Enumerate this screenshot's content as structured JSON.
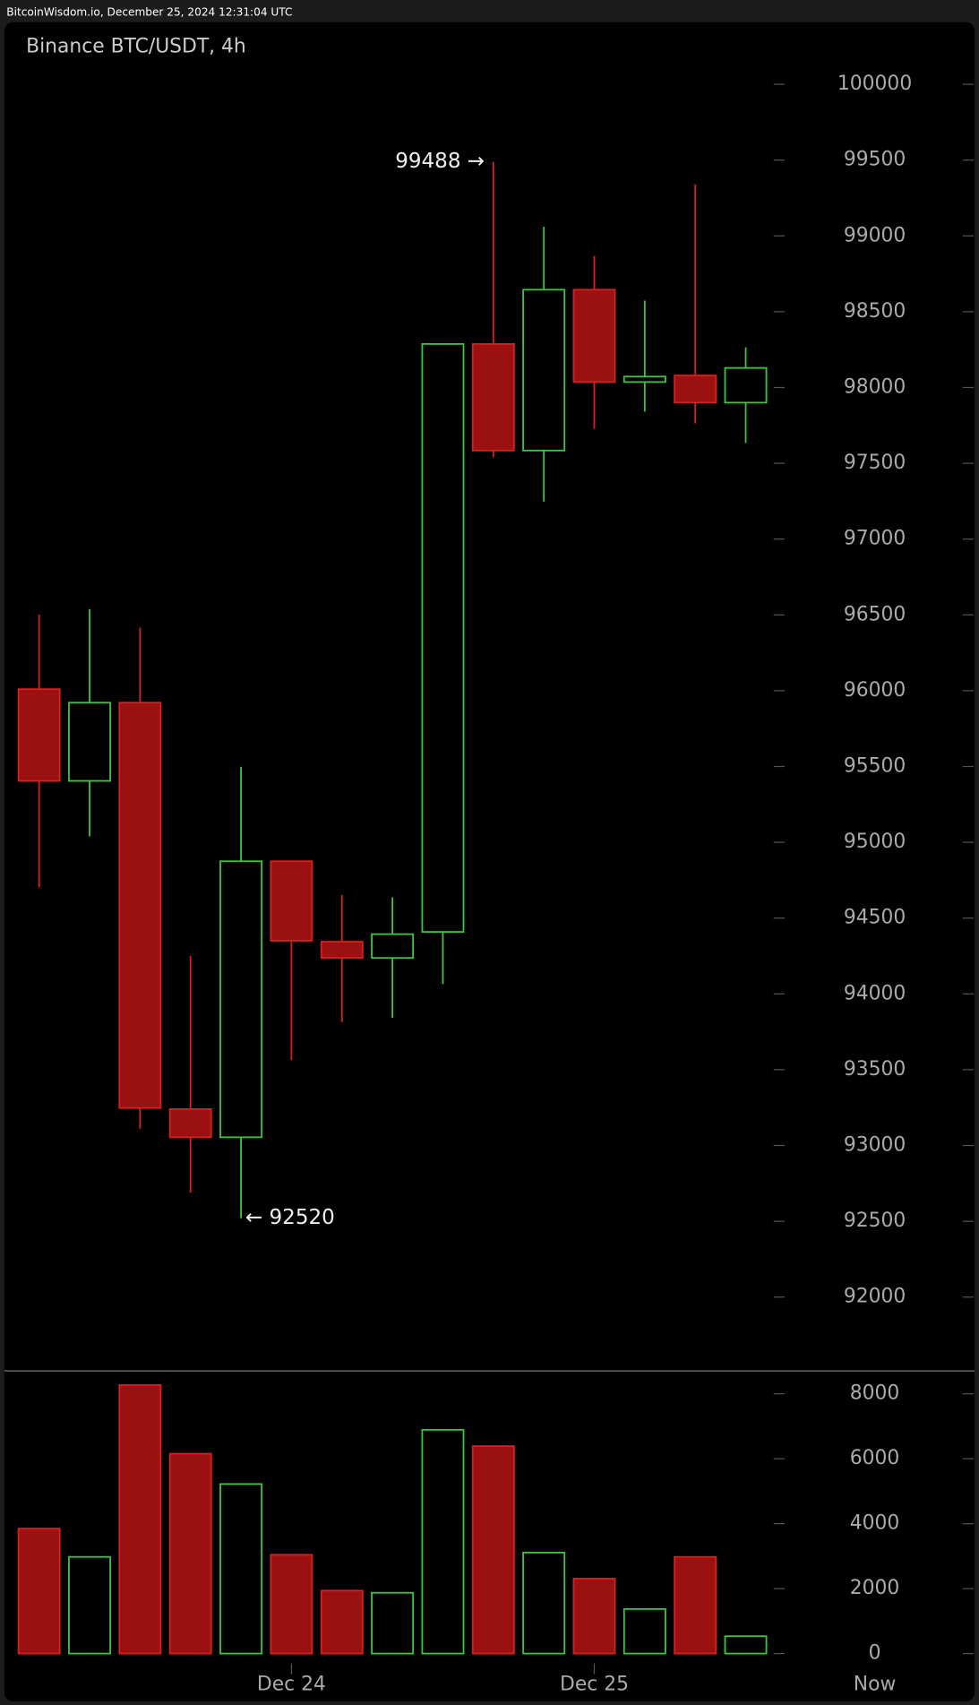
{
  "header": "BitcoinWisdom.io, December 25, 2024 12:31:04 UTC",
  "chart_data": [
    {
      "type": "candlestick",
      "title": "Binance BTC/USDT, 4h",
      "categories": [
        null,
        null,
        null,
        null,
        null,
        "Dec 24",
        null,
        null,
        null,
        null,
        null,
        "Dec 25",
        null,
        null,
        null
      ],
      "open": [
        96010,
        95405,
        95921,
        93240,
        93054,
        94875,
        94344,
        94237,
        94409,
        98287,
        97584,
        98645,
        98036,
        98079,
        97900
      ],
      "high": [
        96502,
        96538,
        96416,
        94251,
        95498,
        94875,
        94652,
        94638,
        98287,
        99488,
        99061,
        98867,
        98573,
        99340,
        98265
      ],
      "low": [
        94703,
        95039,
        93111,
        92688,
        92520,
        93563,
        93814,
        93842,
        94065,
        97541,
        97247,
        97728,
        97842,
        97763,
        97634
      ],
      "close": [
        95405,
        95921,
        93247,
        93054,
        94875,
        94351,
        94237,
        94394,
        98287,
        97584,
        98645,
        98036,
        98072,
        97900,
        98129
      ],
      "up_color": "#3fc23f",
      "down_color": "#d42121",
      "ylim": [
        91520,
        100410
      ],
      "yticks": [
        92000,
        92500,
        93000,
        93500,
        94000,
        94500,
        95000,
        95500,
        96000,
        96500,
        97000,
        97500,
        98000,
        98500,
        99000,
        99500,
        100000
      ],
      "annotations": [
        {
          "text": "99488 →",
          "value": 99488,
          "index": 9
        },
        {
          "text": "← 92520",
          "value": 92520,
          "index": 4
        }
      ]
    },
    {
      "type": "bar",
      "now_label": "Now",
      "values": [
        3848,
        2977,
        8268,
        6154,
        5221,
        3043,
        1940,
        1873,
        6890,
        6388,
        3110,
        2308,
        1371,
        2977,
        535
      ],
      "ylim": [
        -300,
        8670
      ],
      "yticks": [
        0,
        2000,
        4000,
        6000,
        8000
      ]
    }
  ]
}
